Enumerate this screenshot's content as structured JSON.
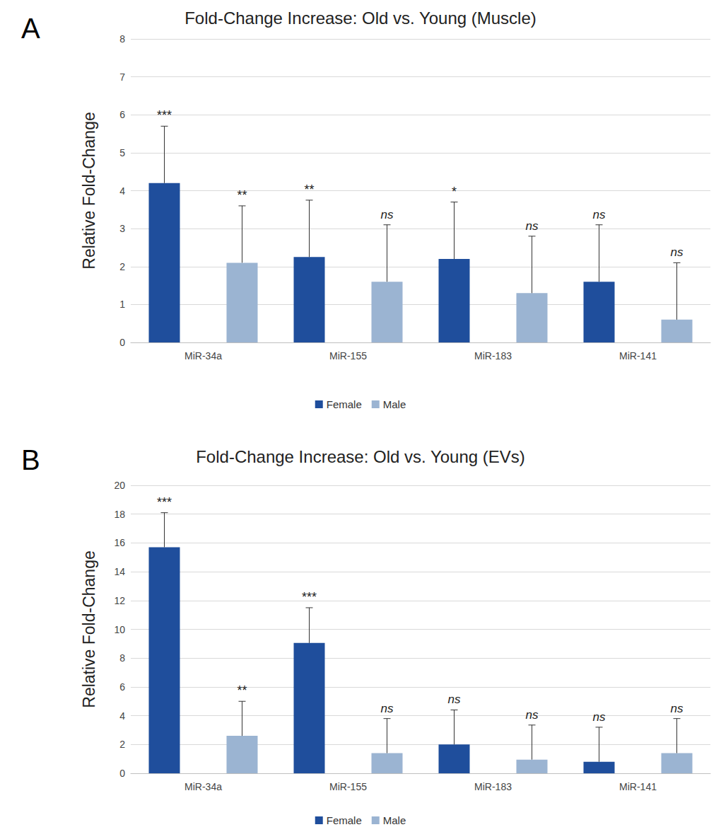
{
  "chart_data": [
    {
      "type": "bar",
      "panel": "A",
      "title": "Fold-Change Increase: Old vs. Young (Muscle)",
      "y_label": "Relative Fold-Change",
      "categories": [
        "MiR-34a",
        "MiR-155",
        "MiR-183",
        "MiR-141"
      ],
      "series": [
        {
          "name": "Female",
          "color": "#1f4e9c",
          "values": [
            4.2,
            2.25,
            2.2,
            1.6
          ],
          "errors": [
            1.5,
            1.5,
            1.5,
            1.5
          ],
          "annotations": [
            "***",
            "**",
            "*",
            "ns"
          ]
        },
        {
          "name": "Male",
          "color": "#9bb4d2",
          "values": [
            2.1,
            1.6,
            1.3,
            0.6
          ],
          "errors": [
            1.5,
            1.5,
            1.5,
            1.5
          ],
          "annotations": [
            "**",
            "ns",
            "ns",
            "ns"
          ]
        }
      ],
      "ylim": [
        0,
        8
      ],
      "yticks": [
        0,
        1,
        2,
        3,
        4,
        5,
        6,
        7,
        8
      ],
      "grid": true,
      "legend": "bottom"
    },
    {
      "type": "bar",
      "panel": "B",
      "title": "Fold-Change Increase: Old vs. Young (EVs)",
      "y_label": "Relative Fold-Change",
      "categories": [
        "MiR-34a",
        "MiR-155",
        "MiR-183",
        "MiR-141"
      ],
      "series": [
        {
          "name": "Female",
          "color": "#1f4e9c",
          "values": [
            15.7,
            9.05,
            2.0,
            0.8
          ],
          "errors": [
            2.4,
            2.45,
            2.4,
            2.4
          ],
          "annotations": [
            "***",
            "***",
            "ns",
            "ns"
          ]
        },
        {
          "name": "Male",
          "color": "#9bb4d2",
          "values": [
            2.6,
            1.4,
            0.95,
            1.4
          ],
          "errors": [
            2.4,
            2.4,
            2.4,
            2.4
          ],
          "annotations": [
            "**",
            "ns",
            "ns",
            "ns"
          ]
        }
      ],
      "ylim": [
        0,
        20
      ],
      "yticks": [
        0,
        2,
        4,
        6,
        8,
        10,
        12,
        14,
        16,
        18,
        20
      ],
      "grid": true,
      "legend": "bottom"
    }
  ]
}
